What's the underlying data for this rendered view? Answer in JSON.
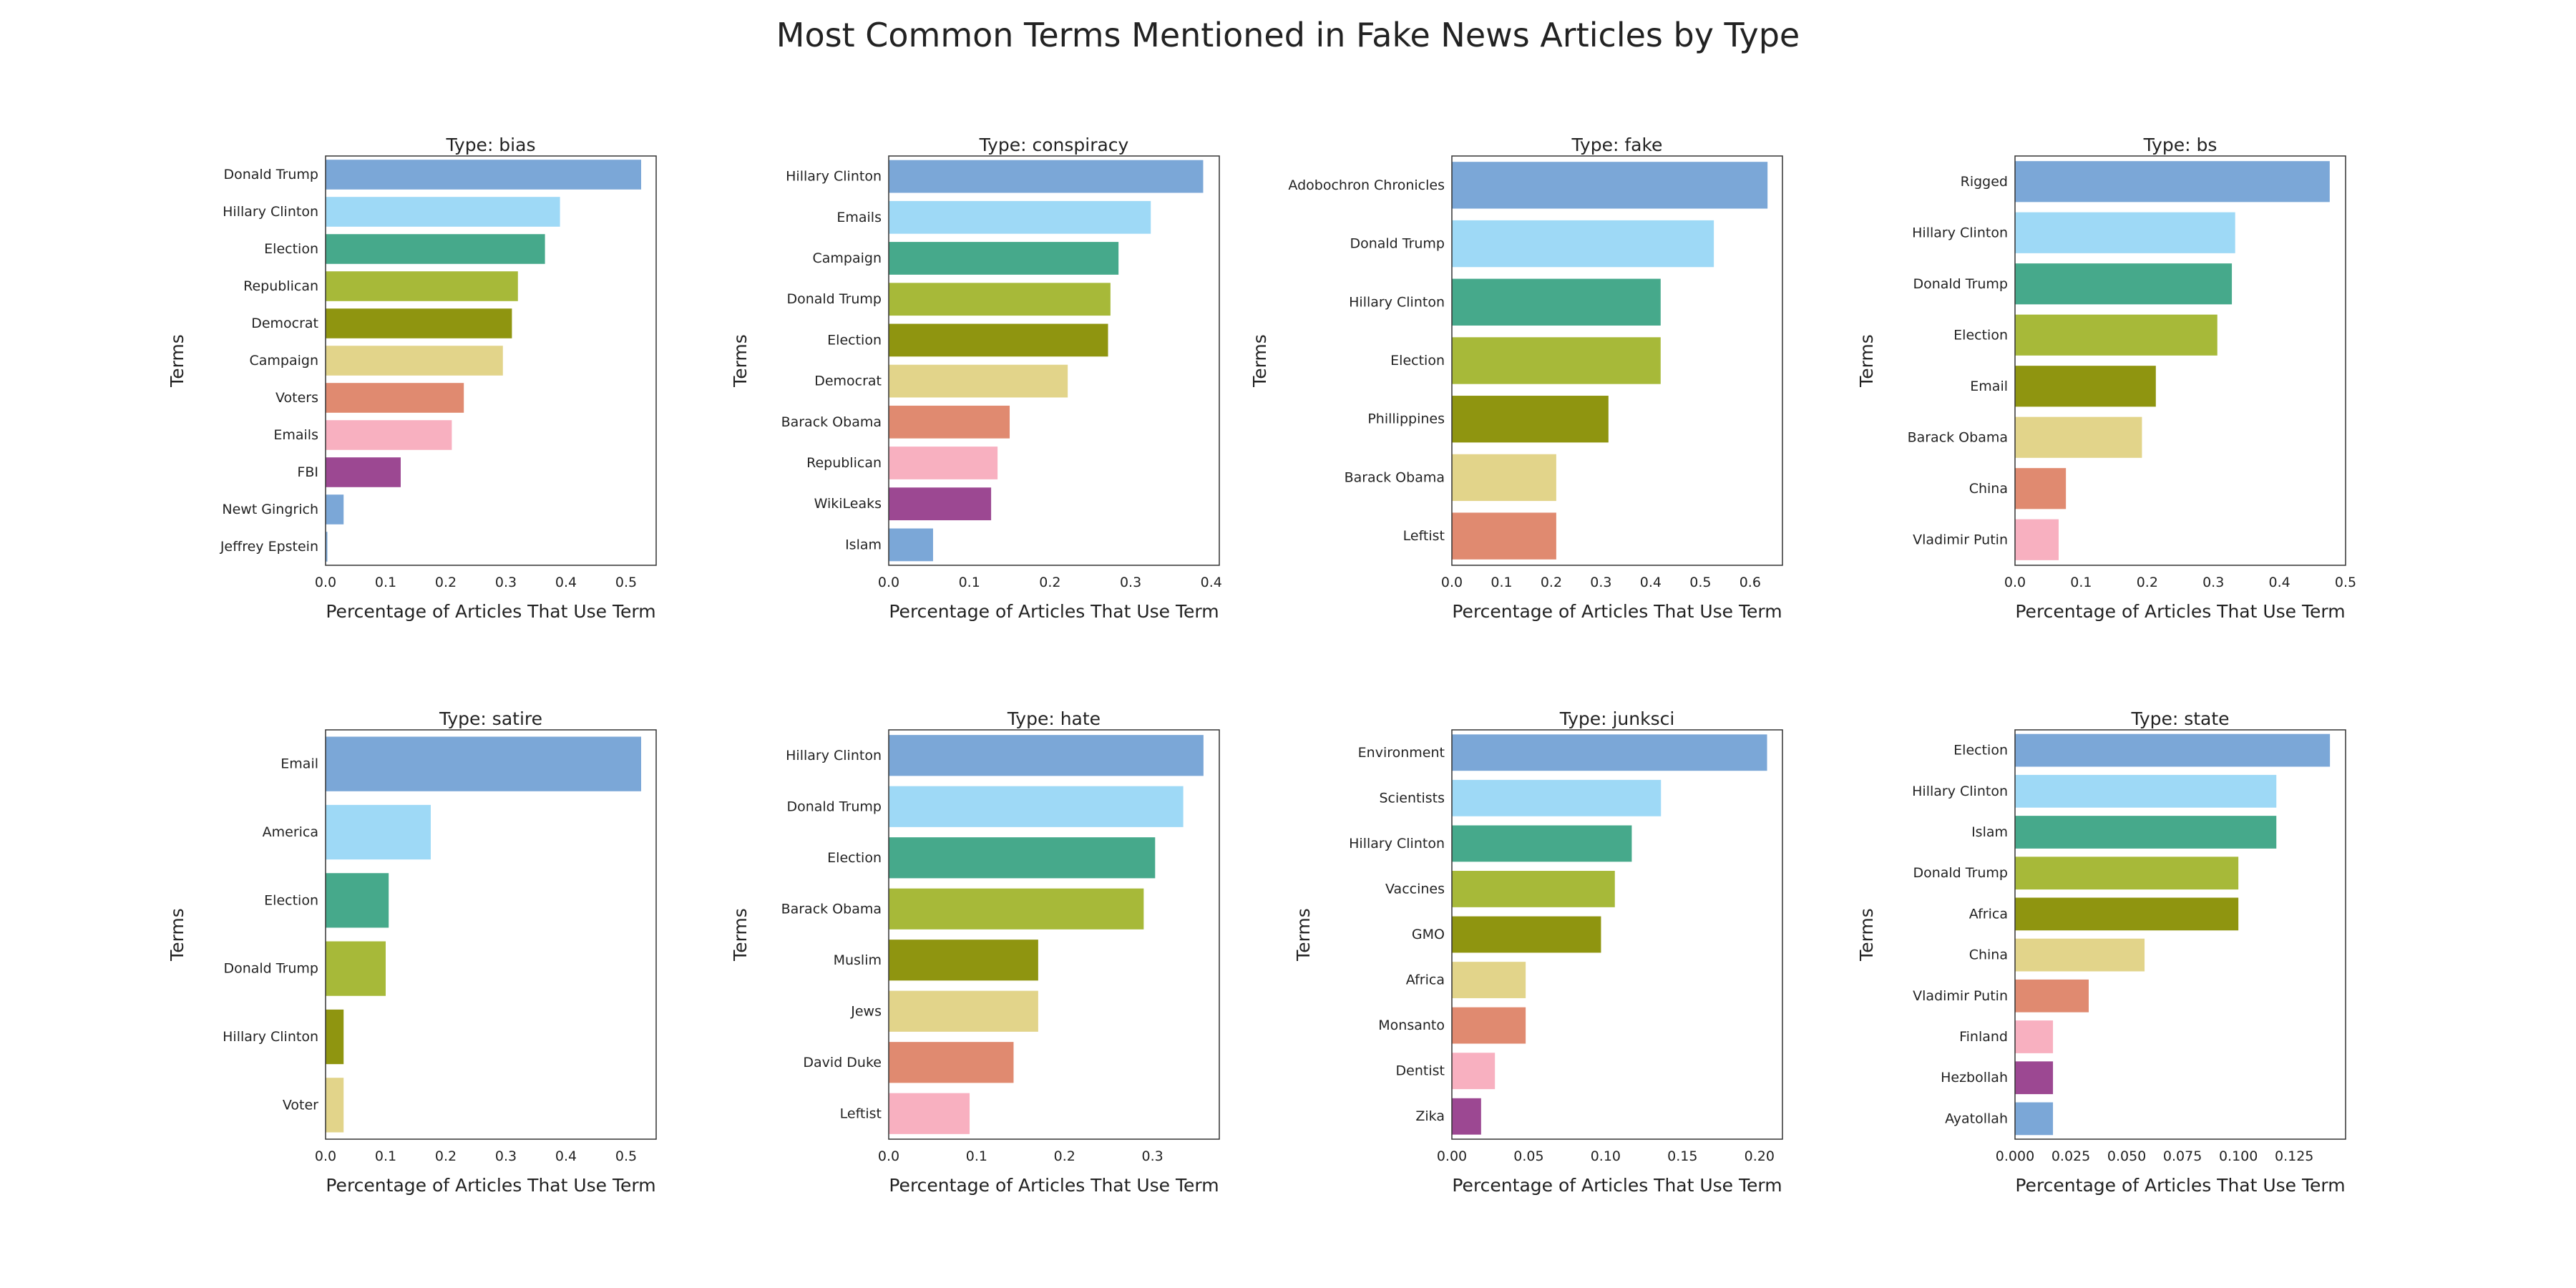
{
  "title": "Most Common Terms Mentioned in Fake News Articles by Type",
  "palette": [
    "#7ba7d7",
    "#9ed9f6",
    "#46a98b",
    "#a7b939",
    "#8f9510",
    "#e2d48a",
    "#e08a70",
    "#f8b0c0",
    "#9c4892",
    "#7ba7d7"
  ],
  "chart_data": [
    {
      "type": "bar",
      "orientation": "horizontal",
      "title": "Type: bias",
      "xlabel": "Percentage of Articles That Use Term",
      "ylabel": "Terms",
      "xlim": [
        0,
        0.55
      ],
      "xticks": [
        0,
        0.1,
        0.2,
        0.3,
        0.4,
        0.5
      ],
      "xtick_labels": [
        "0.0",
        "0.1",
        "0.2",
        "0.3",
        "0.4",
        "0.5"
      ],
      "categories": [
        "Donald Trump",
        "Hillary Clinton",
        "Election",
        "Republican",
        "Democrat",
        "Campaign",
        "Voters",
        "Emails",
        "FBI",
        "Newt Gingrich",
        "Jeffrey Epstein"
      ],
      "values": [
        0.525,
        0.39,
        0.365,
        0.32,
        0.31,
        0.295,
        0.23,
        0.21,
        0.125,
        0.03,
        0.003
      ]
    },
    {
      "type": "bar",
      "orientation": "horizontal",
      "title": "Type: conspiracy",
      "xlabel": "Percentage of Articles That Use Term",
      "ylabel": "Terms",
      "xlim": [
        0,
        0.41
      ],
      "xticks": [
        0,
        0.1,
        0.2,
        0.3,
        0.4
      ],
      "xtick_labels": [
        "0.0",
        "0.1",
        "0.2",
        "0.3",
        "0.4"
      ],
      "categories": [
        "Hillary Clinton",
        "Emails",
        "Campaign",
        "Donald Trump",
        "Election",
        "Democrat",
        "Barack Obama",
        "Republican",
        "WikiLeaks",
        "Islam"
      ],
      "values": [
        0.39,
        0.325,
        0.285,
        0.275,
        0.272,
        0.222,
        0.15,
        0.135,
        0.127,
        0.055
      ]
    },
    {
      "type": "bar",
      "orientation": "horizontal",
      "title": "Type: fake",
      "xlabel": "Percentage of Articles That Use Term",
      "ylabel": "Terms",
      "xlim": [
        0,
        0.665
      ],
      "xticks": [
        0,
        0.1,
        0.2,
        0.3,
        0.4,
        0.5,
        0.6
      ],
      "xtick_labels": [
        "0.0",
        "0.1",
        "0.2",
        "0.3",
        "0.4",
        "0.5",
        "0.6"
      ],
      "categories": [
        "Adobochron Chronicles",
        "Donald Trump",
        "Hillary Clinton",
        "Election",
        "Phillippines",
        "Barack Obama",
        "Leftist"
      ],
      "values": [
        0.635,
        0.527,
        0.42,
        0.42,
        0.315,
        0.21,
        0.21
      ]
    },
    {
      "type": "bar",
      "orientation": "horizontal",
      "title": "Type: bs",
      "xlabel": "Percentage of Articles That Use Term",
      "ylabel": "Terms",
      "xlim": [
        0,
        0.5
      ],
      "xticks": [
        0,
        0.1,
        0.2,
        0.3,
        0.4,
        0.5
      ],
      "xtick_labels": [
        "0.0",
        "0.1",
        "0.2",
        "0.3",
        "0.4",
        "0.5"
      ],
      "categories": [
        "Rigged",
        "Hillary Clinton",
        "Donald Trump",
        "Election",
        "Email",
        "Barack Obama",
        "China",
        "Vladimir Putin"
      ],
      "values": [
        0.476,
        0.333,
        0.328,
        0.306,
        0.213,
        0.192,
        0.077,
        0.066
      ]
    },
    {
      "type": "bar",
      "orientation": "horizontal",
      "title": "Type: satire",
      "xlabel": "Percentage of Articles That Use Term",
      "ylabel": "Terms",
      "xlim": [
        0,
        0.55
      ],
      "xticks": [
        0,
        0.1,
        0.2,
        0.3,
        0.4,
        0.5
      ],
      "xtick_labels": [
        "0.0",
        "0.1",
        "0.2",
        "0.3",
        "0.4",
        "0.5"
      ],
      "categories": [
        "Email",
        "America",
        "Election",
        "Donald Trump",
        "Hillary Clinton",
        "Voter"
      ],
      "values": [
        0.525,
        0.175,
        0.105,
        0.1,
        0.03,
        0.03
      ]
    },
    {
      "type": "bar",
      "orientation": "horizontal",
      "title": "Type: hate",
      "xlabel": "Percentage of Articles That Use Term",
      "ylabel": "Terms",
      "xlim": [
        0,
        0.376
      ],
      "xticks": [
        0,
        0.1,
        0.2,
        0.3
      ],
      "xtick_labels": [
        "0.0",
        "0.1",
        "0.2",
        "0.3"
      ],
      "categories": [
        "Hillary Clinton",
        "Donald Trump",
        "Election",
        "Barack Obama",
        "Muslim",
        "Jews",
        "David Duke",
        "Leftist"
      ],
      "values": [
        0.358,
        0.335,
        0.303,
        0.29,
        0.17,
        0.17,
        0.142,
        0.092
      ]
    },
    {
      "type": "bar",
      "orientation": "horizontal",
      "title": "Type: junksci",
      "xlabel": "Percentage of Articles That Use Term",
      "ylabel": "Terms",
      "xlim": [
        0,
        0.215
      ],
      "xticks": [
        0,
        0.05,
        0.1,
        0.15,
        0.2
      ],
      "xtick_labels": [
        "0.00",
        "0.05",
        "0.10",
        "0.15",
        "0.20"
      ],
      "categories": [
        "Environment",
        "Scientists",
        "Hillary Clinton",
        "Vaccines",
        "GMO",
        "Africa",
        "Monsanto",
        "Dentist",
        "Zika"
      ],
      "values": [
        0.205,
        0.136,
        0.117,
        0.106,
        0.097,
        0.048,
        0.048,
        0.028,
        0.019
      ]
    },
    {
      "type": "bar",
      "orientation": "horizontal",
      "title": "Type: state",
      "xlabel": "Percentage of Articles That Use Term",
      "ylabel": "Terms",
      "xlim": [
        0,
        0.148
      ],
      "xticks": [
        0,
        0.025,
        0.05,
        0.075,
        0.1,
        0.125
      ],
      "xtick_labels": [
        "0.000",
        "0.025",
        "0.050",
        "0.075",
        "0.100",
        "0.125"
      ],
      "categories": [
        "Election",
        "Hillary Clinton",
        "Islam",
        "Donald Trump",
        "Africa",
        "China",
        "Vladimir Putin",
        "Finland",
        "Hezbollah",
        "Ayatollah"
      ],
      "values": [
        0.141,
        0.117,
        0.117,
        0.1,
        0.1,
        0.058,
        0.033,
        0.017,
        0.017,
        0.017
      ]
    }
  ]
}
